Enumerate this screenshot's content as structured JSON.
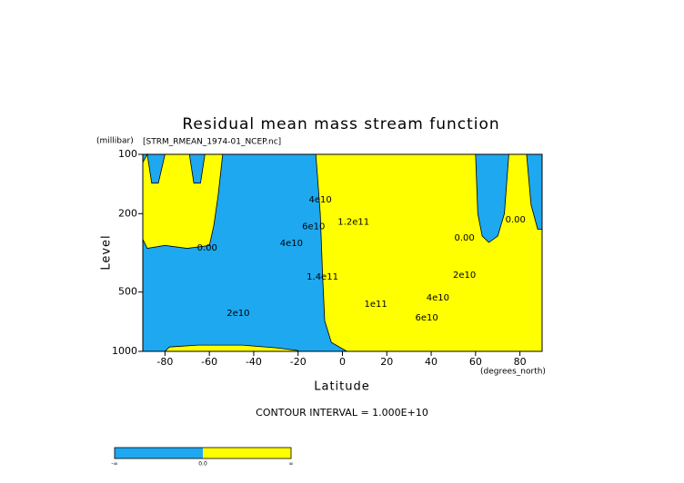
{
  "chart_data": {
    "type": "contour",
    "title": "Residual mean mass stream function",
    "subtitle": "[STRM_RMEAN_1974-01_NCEP.nc]",
    "y_unit": "(millibar)",
    "y_label": "Level",
    "x_label": "Latitude",
    "x_unit": "(degrees_north)",
    "note": "CONTOUR INTERVAL = 1.000E+10",
    "xlim": [
      -90,
      90
    ],
    "ylim": [
      1000,
      100
    ],
    "ylog": true,
    "xticks": [
      -80,
      -60,
      -40,
      -20,
      0,
      20,
      40,
      60,
      80
    ],
    "yticks": [
      100,
      200,
      500,
      1000
    ],
    "background_color": "#1ea8f0",
    "regions": [
      {
        "color": "#ffff00",
        "lat": [
          -88,
          -86,
          -83,
          -80,
          -69,
          -67,
          -64,
          -62,
          -54,
          -56,
          -58,
          -60,
          -70,
          -80,
          -88,
          -90,
          -90
        ],
        "level": [
          100,
          140,
          140,
          100,
          100,
          140,
          140,
          100,
          100,
          160,
          230,
          290,
          300,
          290,
          300,
          270,
          110
        ]
      },
      {
        "color": "#ffff00",
        "lat": [
          -12,
          60,
          61,
          63,
          66,
          70,
          73,
          75,
          83,
          85,
          88,
          90,
          90,
          2,
          -5,
          -8,
          -9,
          -10
        ],
        "level": [
          100,
          100,
          200,
          260,
          280,
          260,
          200,
          100,
          100,
          180,
          240,
          240,
          1000,
          1000,
          900,
          700,
          400,
          200
        ]
      },
      {
        "color": "#ffff00",
        "lat": [
          -80,
          -78,
          -65,
          -45,
          -30,
          -20,
          -20
        ],
        "level": [
          1000,
          950,
          930,
          930,
          960,
          990,
          1000
        ]
      }
    ],
    "contour_labels": [
      {
        "text": "0.00",
        "lat": -61,
        "level": 298
      },
      {
        "text": "2e10",
        "lat": -47,
        "level": 640
      },
      {
        "text": "4e10",
        "lat": -23,
        "level": 283
      },
      {
        "text": "4e10",
        "lat": -10,
        "level": 170
      },
      {
        "text": "6e10",
        "lat": -13,
        "level": 233
      },
      {
        "text": "1.2e11",
        "lat": 5,
        "level": 220
      },
      {
        "text": "1.4e11",
        "lat": -9,
        "level": 418
      },
      {
        "text": "1e11",
        "lat": 15,
        "level": 575
      },
      {
        "text": "2e10",
        "lat": 55,
        "level": 410
      },
      {
        "text": "4e10",
        "lat": 43,
        "level": 535
      },
      {
        "text": "6e10",
        "lat": 38,
        "level": 675
      },
      {
        "text": "0.00",
        "lat": 55,
        "level": 265
      },
      {
        "text": "0.00",
        "lat": 78,
        "level": 215
      }
    ],
    "colorbar": {
      "colors": [
        "#1ea8f0",
        "#ffff00"
      ],
      "labels": [
        "-∞",
        "0.0",
        "∞"
      ]
    }
  }
}
